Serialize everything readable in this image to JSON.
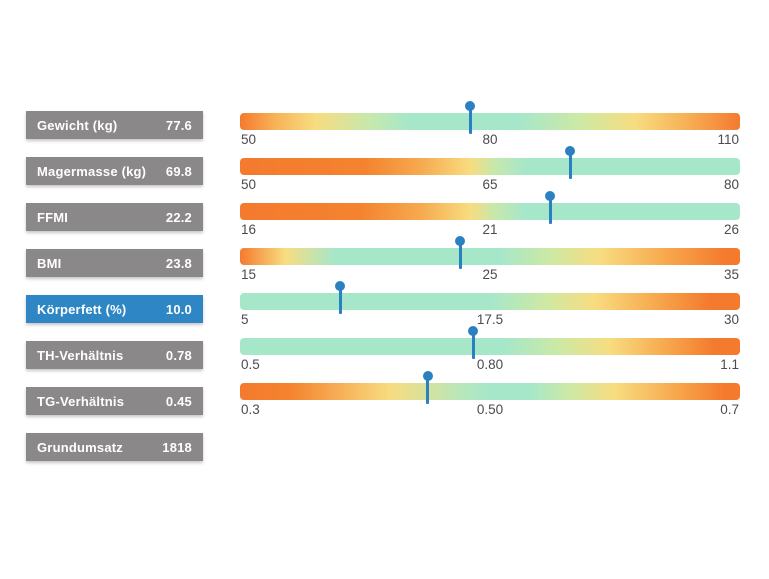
{
  "colors": {
    "accent_blue": "#2e86c5",
    "row_gray": "#8a8888",
    "marker_blue": "#2b80c2",
    "gradient_orange": "#f47a2e",
    "gradient_yellow": "#f8dc80",
    "gradient_teal": "#a6e7ca",
    "tick_text": "#4b4b50"
  },
  "sidebar": {
    "items": [
      {
        "label": "Gewicht (kg)",
        "value": "77.6",
        "active": false
      },
      {
        "label": "Magermasse (kg)",
        "value": "69.8",
        "active": false
      },
      {
        "label": "FFMI",
        "value": "22.2",
        "active": false
      },
      {
        "label": "BMI",
        "value": "23.8",
        "active": false
      },
      {
        "label": "Körperfett (%)",
        "value": "10.0",
        "active": true
      },
      {
        "label": "TH-Verhältnis",
        "value": "0.78",
        "active": false
      },
      {
        "label": "TG-Verhältnis",
        "value": "0.45",
        "active": false
      },
      {
        "label": "Grundumsatz",
        "value": "1818",
        "active": false
      }
    ]
  },
  "chart_data": {
    "type": "bar",
    "title": "",
    "xlabel": "",
    "ylabel": "",
    "legend": false,
    "grid": false,
    "metrics": [
      {
        "label": "Gewicht (kg)",
        "value": 77.6,
        "min": 50,
        "mid": 80,
        "max": 110,
        "min_label": "50",
        "mid_label": "80",
        "max_label": "110",
        "good_zone": "middle"
      },
      {
        "label": "Magermasse (kg)",
        "value": 69.8,
        "min": 50,
        "mid": 65,
        "max": 80,
        "min_label": "50",
        "mid_label": "65",
        "max_label": "80",
        "good_zone": "high"
      },
      {
        "label": "FFMI",
        "value": 22.2,
        "min": 16,
        "mid": 21,
        "max": 26,
        "min_label": "16",
        "mid_label": "21",
        "max_label": "26",
        "good_zone": "high"
      },
      {
        "label": "BMI",
        "value": 23.8,
        "min": 15,
        "mid": 25,
        "max": 35,
        "min_label": "15",
        "mid_label": "25",
        "max_label": "35",
        "good_zone": "middle-low"
      },
      {
        "label": "Körperfett (%)",
        "value": 10.0,
        "min": 5,
        "mid": 17.5,
        "max": 30,
        "min_label": "5",
        "mid_label": "17.5",
        "max_label": "30",
        "good_zone": "low"
      },
      {
        "label": "TH-Verhältnis",
        "value": 0.78,
        "min": 0.5,
        "mid": 0.8,
        "max": 1.1,
        "min_label": "0.5",
        "mid_label": "0.80",
        "max_label": "1.1",
        "good_zone": "low"
      },
      {
        "label": "TG-Verhältnis",
        "value": 0.45,
        "min": 0.3,
        "mid": 0.5,
        "max": 0.7,
        "min_label": "0.3",
        "mid_label": "0.50",
        "max_label": "0.7",
        "good_zone": "middle"
      }
    ]
  }
}
